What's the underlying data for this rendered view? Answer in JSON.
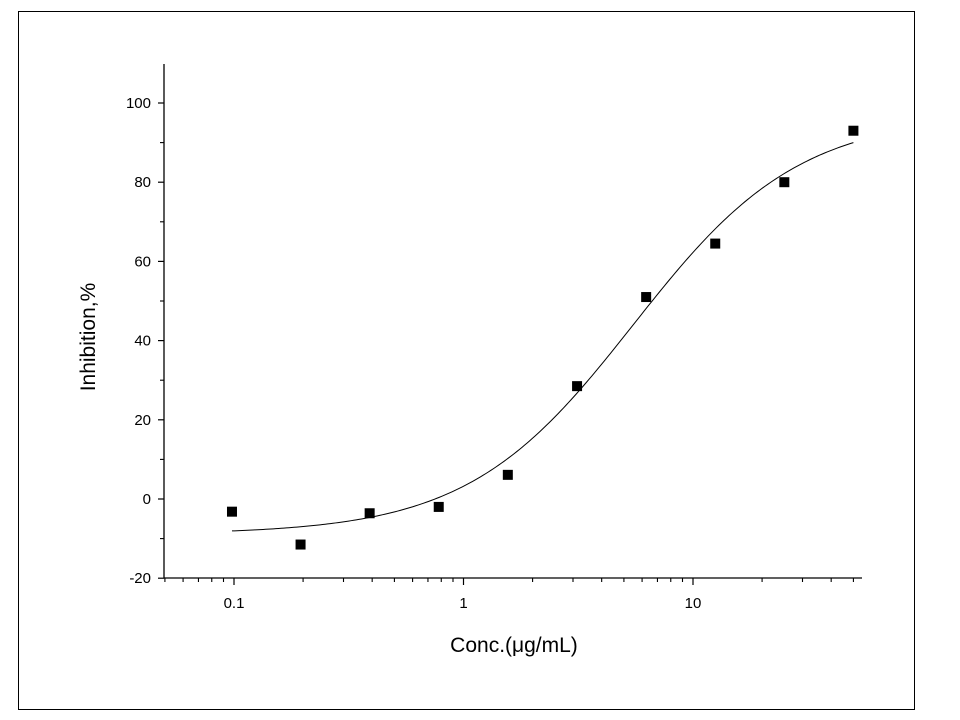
{
  "chart_data": {
    "type": "scatter",
    "title": "",
    "xlabel": "Conc.(μg/mL)",
    "ylabel": "Inhibition,%",
    "x_scale": "log",
    "xlim": [
      0.05,
      50
    ],
    "ylim": [
      -20,
      110
    ],
    "x_ticks": [
      0.1,
      1,
      10
    ],
    "x_tick_labels": [
      "0.1",
      "1",
      "10"
    ],
    "y_ticks": [
      -20,
      0,
      20,
      40,
      60,
      80,
      100
    ],
    "y_tick_labels": [
      "-20",
      "0",
      "20",
      "40",
      "60",
      "80",
      "100"
    ],
    "grid": false,
    "legend": "none",
    "series": [
      {
        "marker": "square",
        "color": "#000000",
        "x": [
          0.098,
          0.195,
          0.39,
          0.78,
          1.56,
          3.125,
          6.25,
          12.5,
          25,
          50
        ],
        "y": [
          -3.2,
          -11.5,
          -3.6,
          -2.0,
          6.1,
          28.5,
          51.0,
          64.5,
          80.0,
          93.0
        ]
      }
    ],
    "fit_curve": {
      "type": "logistic",
      "color": "#000000",
      "bottom": -8.9,
      "top": 97.0,
      "ec50": 5.5,
      "hill": 1.2,
      "x_range": [
        0.098,
        50
      ]
    }
  }
}
